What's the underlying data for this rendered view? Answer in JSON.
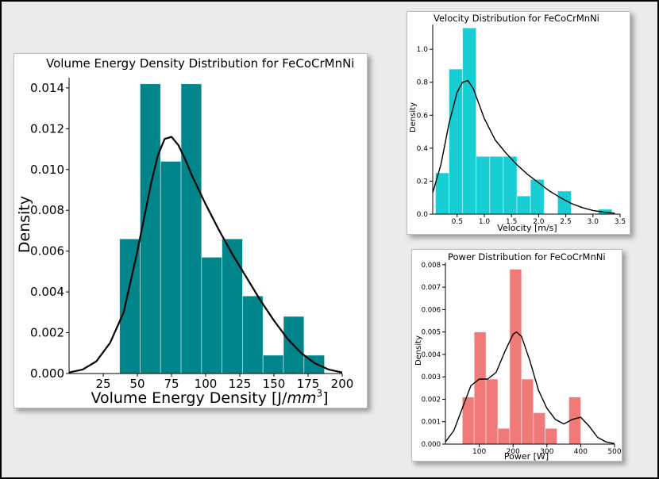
{
  "chart_data": [
    {
      "type": "bar",
      "title": "Volume Energy Density Distribution for FeCoCrMnNi",
      "xlabel_prefix": "Volume Energy Density [J/",
      "xlabel_unit": "mm",
      "xlabel_exp": "3",
      "xlabel_suffix": "]",
      "ylabel": "Density",
      "xlim": [
        0,
        200
      ],
      "ylim": [
        0,
        0.0145
      ],
      "xticks": [
        "25",
        "50",
        "75",
        "100",
        "125",
        "150",
        "175",
        "200"
      ],
      "yticks": [
        "0.000",
        "0.002",
        "0.004",
        "0.006",
        "0.008",
        "0.010",
        "0.012",
        "0.014"
      ],
      "bins": [
        {
          "x0": 37,
          "x1": 52,
          "value": 0.0066
        },
        {
          "x0": 52,
          "x1": 67,
          "value": 0.0142
        },
        {
          "x0": 67,
          "x1": 82,
          "value": 0.0104
        },
        {
          "x0": 82,
          "x1": 97,
          "value": 0.0142
        },
        {
          "x0": 97,
          "x1": 112,
          "value": 0.0057
        },
        {
          "x0": 112,
          "x1": 127,
          "value": 0.0066
        },
        {
          "x0": 127,
          "x1": 142,
          "value": 0.0038
        },
        {
          "x0": 142,
          "x1": 157,
          "value": 0.0009
        },
        {
          "x0": 157,
          "x1": 172,
          "value": 0.0028
        },
        {
          "x0": 172,
          "x1": 187,
          "value": 0.0009
        }
      ],
      "kde": {
        "x": [
          0,
          10,
          20,
          30,
          40,
          50,
          60,
          65,
          70,
          75,
          80,
          85,
          90,
          100,
          110,
          120,
          130,
          140,
          150,
          160,
          170,
          180,
          190,
          200
        ],
        "y": [
          5e-05,
          0.0002,
          0.0006,
          0.0015,
          0.003,
          0.006,
          0.0093,
          0.0107,
          0.0115,
          0.0116,
          0.0112,
          0.0105,
          0.0097,
          0.0083,
          0.007,
          0.0058,
          0.0047,
          0.0036,
          0.0026,
          0.0017,
          0.001,
          0.0005,
          0.0002,
          5e-05
        ]
      },
      "bar_color": "#00868a",
      "curve_color": "#000000",
      "grid": false
    },
    {
      "type": "bar",
      "title": "Velocity Distribution for FeCoCrMnNi",
      "xlabel": "Velocity [m/s]",
      "ylabel": "Density",
      "xlim": [
        0.05,
        3.5
      ],
      "ylim": [
        0,
        1.15
      ],
      "xticks": [
        "0.5",
        "1.0",
        "1.5",
        "2.0",
        "2.5",
        "3.0",
        "3.5"
      ],
      "yticks": [
        "0.0",
        "0.2",
        "0.4",
        "0.6",
        "0.8",
        "1.0"
      ],
      "bins": [
        {
          "x0": 0.1,
          "x1": 0.35,
          "value": 0.25
        },
        {
          "x0": 0.35,
          "x1": 0.6,
          "value": 0.88
        },
        {
          "x0": 0.6,
          "x1": 0.85,
          "value": 1.13
        },
        {
          "x0": 0.85,
          "x1": 1.1,
          "value": 0.35
        },
        {
          "x0": 1.1,
          "x1": 1.35,
          "value": 0.35
        },
        {
          "x0": 1.35,
          "x1": 1.6,
          "value": 0.35
        },
        {
          "x0": 1.6,
          "x1": 1.85,
          "value": 0.11
        },
        {
          "x0": 1.85,
          "x1": 2.1,
          "value": 0.21
        },
        {
          "x0": 2.1,
          "x1": 2.35,
          "value": 0.0
        },
        {
          "x0": 2.35,
          "x1": 2.6,
          "value": 0.14
        },
        {
          "x0": 2.6,
          "x1": 2.85,
          "value": 0.0
        },
        {
          "x0": 2.85,
          "x1": 3.1,
          "value": 0.0
        },
        {
          "x0": 3.1,
          "x1": 3.35,
          "value": 0.03
        }
      ],
      "kde": {
        "x": [
          0.05,
          0.2,
          0.35,
          0.5,
          0.6,
          0.7,
          0.8,
          0.9,
          1.0,
          1.2,
          1.4,
          1.6,
          1.8,
          2.0,
          2.2,
          2.4,
          2.6,
          2.8,
          3.0,
          3.2,
          3.4
        ],
        "y": [
          0.13,
          0.3,
          0.55,
          0.74,
          0.8,
          0.81,
          0.76,
          0.67,
          0.58,
          0.45,
          0.37,
          0.3,
          0.24,
          0.19,
          0.14,
          0.1,
          0.065,
          0.04,
          0.022,
          0.012,
          0.006
        ]
      },
      "bar_color": "#17cfd2",
      "curve_color": "#000000",
      "grid": false
    },
    {
      "type": "bar",
      "title": "Power Distribution for FeCoCrMnNi",
      "xlabel": "Power [W]",
      "ylabel": "Density",
      "xlim": [
        0,
        500
      ],
      "ylim": [
        0,
        0.0081
      ],
      "xticks": [
        "100",
        "200",
        "300",
        "400",
        "500"
      ],
      "yticks": [
        "0.000",
        "0.001",
        "0.002",
        "0.003",
        "0.004",
        "0.005",
        "0.006",
        "0.007",
        "0.008"
      ],
      "bins": [
        {
          "x0": 50,
          "x1": 85,
          "value": 0.0021
        },
        {
          "x0": 85,
          "x1": 120,
          "value": 0.005
        },
        {
          "x0": 120,
          "x1": 155,
          "value": 0.0029
        },
        {
          "x0": 155,
          "x1": 190,
          "value": 0.0007
        },
        {
          "x0": 190,
          "x1": 225,
          "value": 0.0078
        },
        {
          "x0": 225,
          "x1": 260,
          "value": 0.0029
        },
        {
          "x0": 260,
          "x1": 295,
          "value": 0.0014
        },
        {
          "x0": 295,
          "x1": 330,
          "value": 0.0007
        },
        {
          "x0": 330,
          "x1": 365,
          "value": 0.0
        },
        {
          "x0": 365,
          "x1": 400,
          "value": 0.0021
        }
      ],
      "kde": {
        "x": [
          0,
          25,
          50,
          75,
          100,
          125,
          150,
          175,
          200,
          210,
          225,
          250,
          275,
          300,
          325,
          350,
          375,
          400,
          425,
          450,
          475,
          500
        ],
        "y": [
          0.0001,
          0.0006,
          0.0016,
          0.0026,
          0.0029,
          0.0029,
          0.0032,
          0.0041,
          0.0049,
          0.005,
          0.0048,
          0.0037,
          0.0024,
          0.0016,
          0.0011,
          0.0009,
          0.0011,
          0.0012,
          0.0008,
          0.0003,
          0.0001,
          2e-05
        ]
      },
      "bar_color": "#ef7a78",
      "curve_color": "#000000",
      "grid": false
    }
  ]
}
